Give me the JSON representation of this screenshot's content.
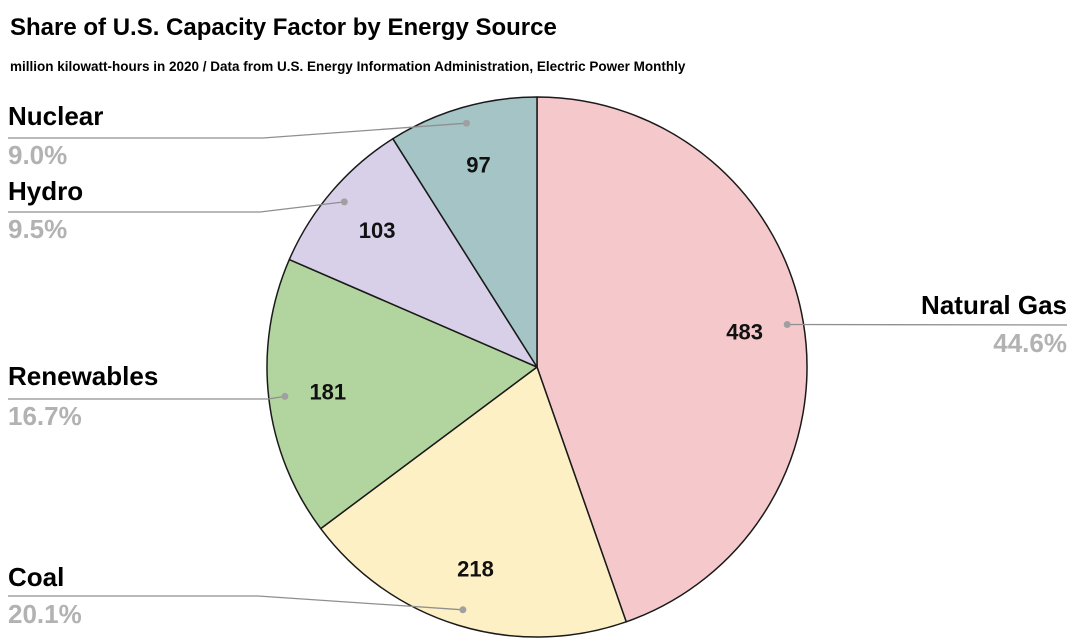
{
  "page": {
    "title": "Share of U.S. Capacity Factor by Energy Source",
    "subtitle": "million kilowatt-hours in 2020 /  Data from U.S. Energy Information Administration, Electric Power Monthly"
  },
  "chart_data": {
    "type": "pie",
    "title": "Share of U.S. Capacity Factor by Energy Source",
    "subtitle": "million kilowatt-hours in 2020 /  Data from U.S. Energy Information Administration, Electric Power Monthly",
    "unit": "million kilowatt-hours",
    "start_angle_deg": 0,
    "direction": "clockwise",
    "slices": [
      {
        "label": "Natural Gas",
        "value": 483,
        "pct": "44.6%",
        "color": "#f5c9cb"
      },
      {
        "label": "Coal",
        "value": 218,
        "pct": "20.1%",
        "color": "#fdf0c5"
      },
      {
        "label": "Renewables",
        "value": 181,
        "pct": "16.7%",
        "color": "#b2d5a0"
      },
      {
        "label": "Hydro",
        "value": 103,
        "pct": "9.5%",
        "color": "#d8d0e8"
      },
      {
        "label": "Nuclear",
        "value": 97,
        "pct": "9.0%",
        "color": "#a4c4c6"
      }
    ],
    "colors": {
      "slice_outline": "#1a1a1a",
      "value_label": "#111111",
      "callout_name": "#000000",
      "callout_pct": "#b2b2b2",
      "leader_line": "#8f8f8f",
      "leader_dot": "#a0a0a0"
    }
  }
}
